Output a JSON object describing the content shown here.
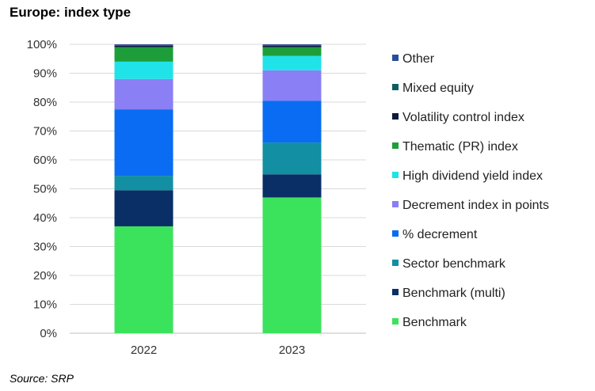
{
  "title": "Europe: index type",
  "source": "Source: SRP",
  "chart_data": {
    "type": "bar",
    "stacked": true,
    "categories": [
      "2022",
      "2023"
    ],
    "ylim": [
      0,
      100
    ],
    "yticks": [
      "0%",
      "10%",
      "20%",
      "30%",
      "40%",
      "50%",
      "60%",
      "70%",
      "80%",
      "90%",
      "100%"
    ],
    "grid": true,
    "legend_position": "right",
    "series": [
      {
        "name": "Benchmark",
        "color": "#3be35c",
        "values": [
          37,
          47
        ]
      },
      {
        "name": "Benchmark (multi)",
        "color": "#0a2f66",
        "values": [
          12.5,
          8
        ]
      },
      {
        "name": "Sector benchmark",
        "color": "#128fa3",
        "values": [
          5,
          11
        ]
      },
      {
        "name": "% decrement",
        "color": "#0a6cf2",
        "values": [
          23,
          14.5
        ]
      },
      {
        "name": "Decrement index in points",
        "color": "#8b7ff5",
        "values": [
          10.5,
          10.5
        ]
      },
      {
        "name": "High dividend yield index",
        "color": "#1fe3e8",
        "values": [
          6,
          5
        ]
      },
      {
        "name": "Thematic (PR) index",
        "color": "#1e9e3a",
        "values": [
          5,
          3
        ]
      },
      {
        "name": "Volatility control index",
        "color": "#0c1a3c",
        "values": [
          0.5,
          0.5
        ]
      },
      {
        "name": "Mixed equity",
        "color": "#0b5e60",
        "values": [
          0,
          0
        ]
      },
      {
        "name": "Other",
        "color": "#2a4d9a",
        "values": [
          0.5,
          0.5
        ]
      }
    ]
  }
}
